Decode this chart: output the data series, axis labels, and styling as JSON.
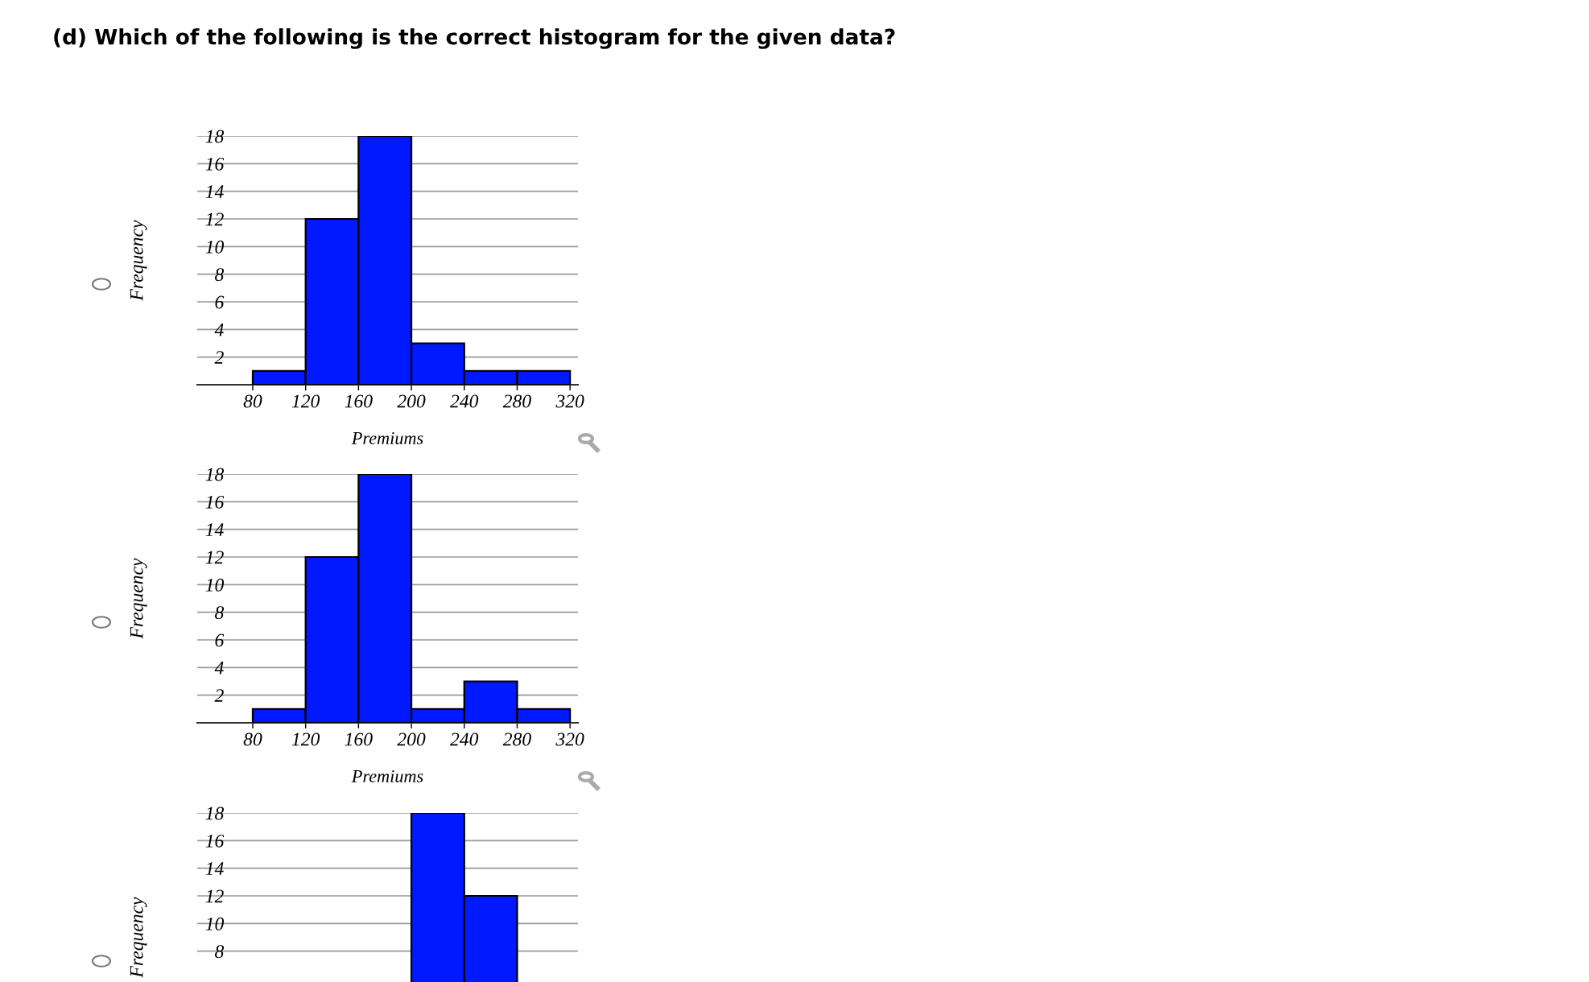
{
  "chart_data": [
    {
      "type": "histogram",
      "title": "(d) Which of the following is the correct histogram for the given data?",
      "xlabel": "Premiums",
      "ylabel": "Frequency",
      "bins": [
        80,
        120,
        160,
        200,
        240,
        280,
        320
      ],
      "values": [
        1,
        12,
        18,
        3,
        1,
        1
      ],
      "color": "#0019ff",
      "xlim": [
        38,
        326
      ],
      "ylim": [
        0,
        18
      ],
      "xticks": [
        80,
        120,
        160,
        200,
        240,
        280,
        320
      ],
      "yticks": [
        2,
        4,
        6,
        8,
        10,
        12,
        14,
        16,
        18
      ],
      "grid": "y"
    },
    {
      "type": "histogram",
      "xlabel": "Premiums",
      "ylabel": "Frequency",
      "bins": [
        80,
        120,
        160,
        200,
        240,
        280,
        320
      ],
      "values": [
        1,
        12,
        18,
        1,
        3,
        1
      ],
      "color": "#0019ff",
      "xlim": [
        38,
        326
      ],
      "ylim": [
        0,
        18
      ],
      "xticks": [
        80,
        120,
        160,
        200,
        240,
        280,
        320
      ],
      "yticks": [
        2,
        4,
        6,
        8,
        10,
        12,
        14,
        16,
        18
      ],
      "grid": "y"
    },
    {
      "type": "histogram",
      "ylabel": "Frequency",
      "bins": [
        80,
        120,
        160,
        200,
        240,
        280,
        320
      ],
      "values": [
        null,
        null,
        null,
        18,
        12,
        null
      ],
      "color": "#0019ff",
      "xlim": [
        38,
        326
      ],
      "ylim": [
        0,
        18
      ],
      "yticks": [
        8,
        10,
        12,
        14,
        16,
        18
      ],
      "grid": "y",
      "tick_labels": "y"
    }
  ]
}
